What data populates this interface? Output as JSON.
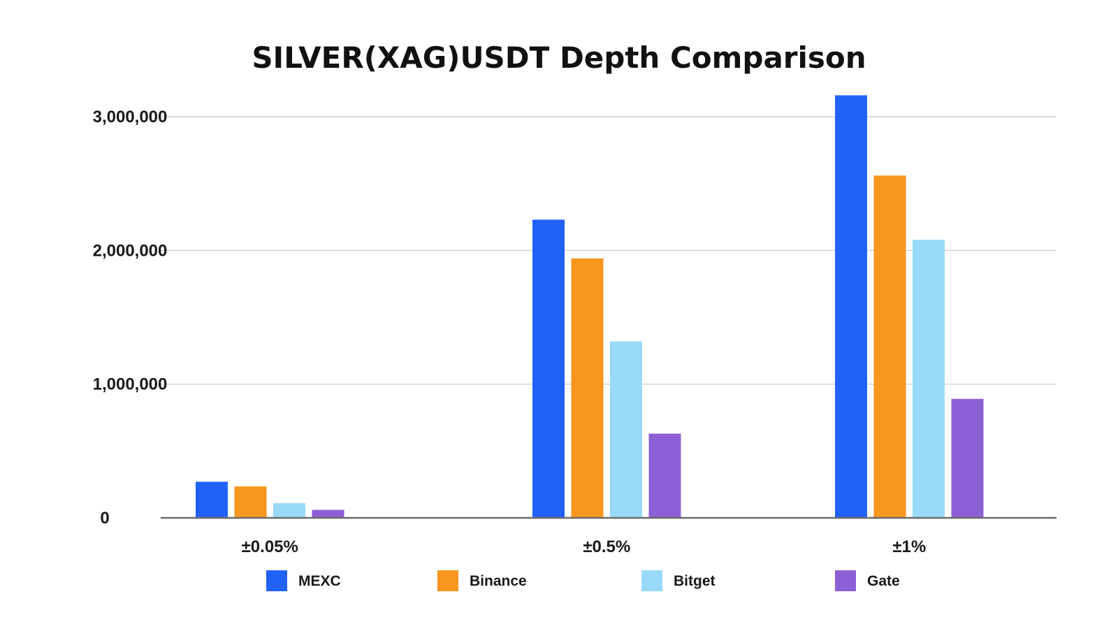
{
  "chart_data": {
    "type": "bar",
    "title": "SILVER(XAG)USDT Depth Comparison",
    "xlabel": "",
    "ylabel": "",
    "categories": [
      "±0.05%",
      "±0.5%",
      "±1%"
    ],
    "series": [
      {
        "name": "MEXC",
        "color": "#2162f6",
        "values": [
          270000,
          2230000,
          3160000
        ]
      },
      {
        "name": "Binance",
        "color": "#f8961e",
        "values": [
          235000,
          1940000,
          2560000
        ]
      },
      {
        "name": "Bitget",
        "color": "#99dafa",
        "values": [
          110000,
          1320000,
          2080000
        ]
      },
      {
        "name": "Gate",
        "color": "#8c5fd4",
        "values": [
          60000,
          630000,
          890000
        ]
      }
    ],
    "ylim": [
      0,
      3000000
    ],
    "yticks": [
      0,
      1000000,
      2000000,
      3000000
    ],
    "ytick_labels": [
      "0",
      "1,000,000",
      "2,000,000",
      "3,000,000"
    ],
    "grid": true,
    "legend_position": "bottom"
  }
}
